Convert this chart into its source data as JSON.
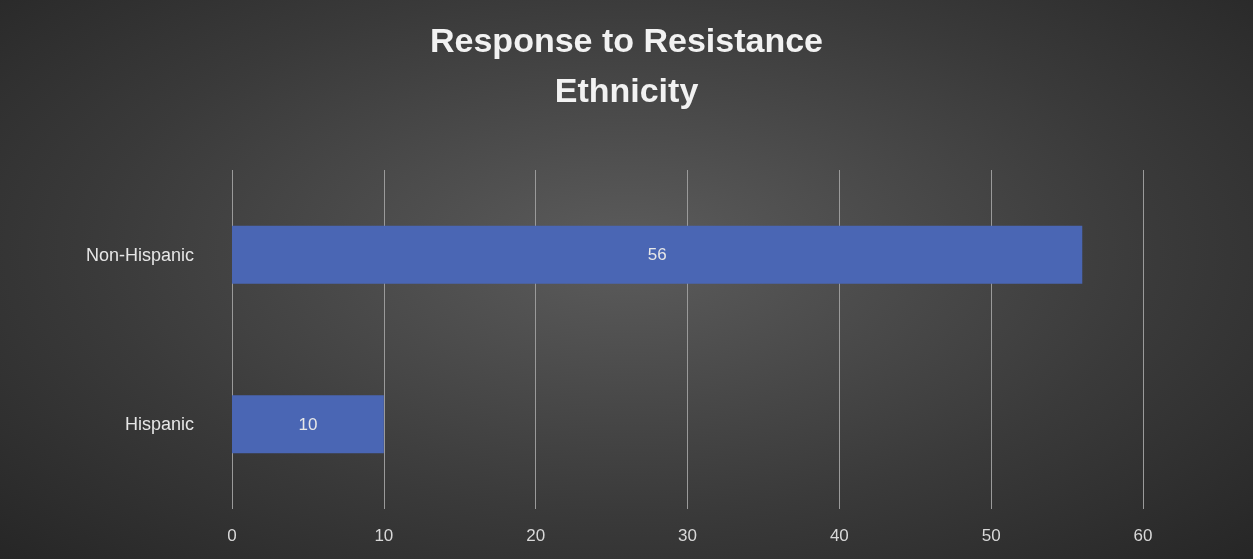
{
  "chart_data": {
    "type": "bar",
    "orientation": "horizontal",
    "title": "Response to Resistance\nEthnicity",
    "categories": [
      "Non-Hispanic",
      "Hispanic"
    ],
    "values": [
      56,
      10
    ],
    "color": "#4a66b4",
    "xlim": [
      0,
      60
    ],
    "xticks": [
      0,
      10,
      20,
      30,
      40,
      50,
      60
    ],
    "grid": "x",
    "data_labels": true
  }
}
